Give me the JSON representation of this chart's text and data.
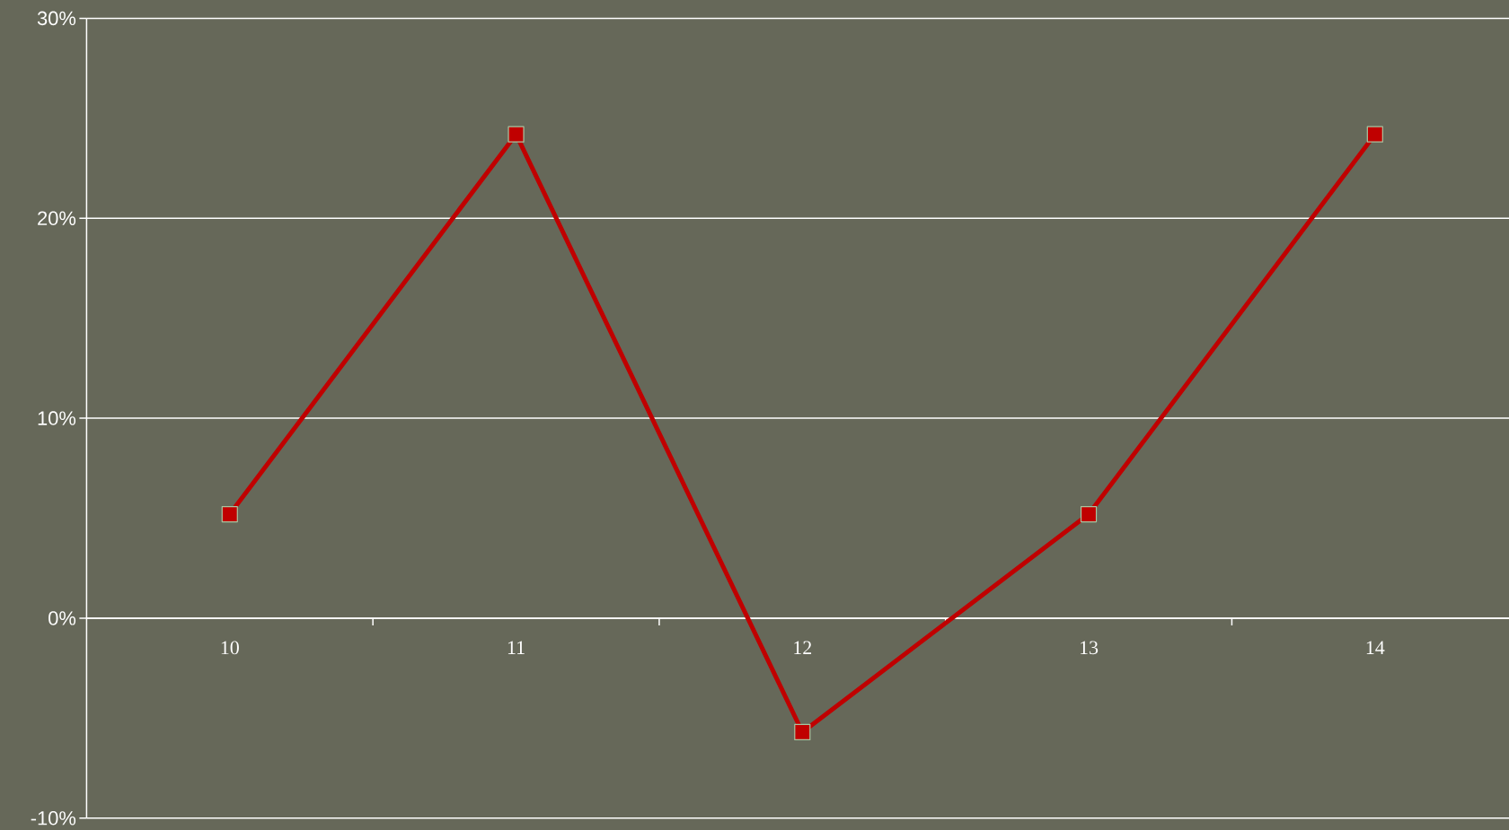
{
  "chart_data": {
    "type": "line",
    "categories": [
      "10",
      "11",
      "12",
      "13",
      "14"
    ],
    "series": [
      {
        "color": "#c00000",
        "values": [
          5.2,
          24.2,
          -5.7,
          5.2,
          24.2
        ]
      }
    ],
    "ylim": [
      -10,
      30
    ],
    "yticks": [
      {
        "value": -10,
        "label": "-10%"
      },
      {
        "value": 0,
        "label": "0%"
      },
      {
        "value": 10,
        "label": "10%"
      },
      {
        "value": 20,
        "label": "20%"
      },
      {
        "value": 30,
        "label": "30%"
      }
    ],
    "grid": "y",
    "marker": "square",
    "line_style": "solid"
  }
}
